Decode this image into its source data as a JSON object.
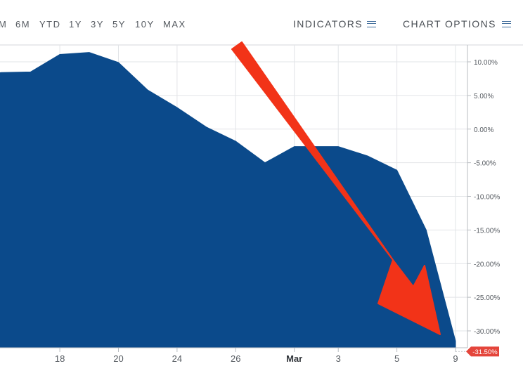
{
  "toolbar": {
    "ranges": [
      "M",
      "6M",
      "YTD",
      "1Y",
      "3Y",
      "5Y",
      "10Y",
      "MAX"
    ],
    "indicators_label": "INDICATORS",
    "chart_options_label": "CHART OPTIONS"
  },
  "colors": {
    "area_fill": "#0b4a8b",
    "arrow": "#f23318",
    "last_value_badge": "#e4453b",
    "grid": "#e2e4e7",
    "axis_text": "#555a60"
  },
  "chart_data": {
    "type": "area",
    "ylim": [
      -33.5,
      12.5
    ],
    "y_ticks": [
      {
        "value": 10,
        "label": "10.00%"
      },
      {
        "value": 5,
        "label": "5.00%"
      },
      {
        "value": 0,
        "label": "0.00%"
      },
      {
        "value": -5,
        "label": "-5.00%"
      },
      {
        "value": -10,
        "label": "-10.00%"
      },
      {
        "value": -15,
        "label": "-15.00%"
      },
      {
        "value": -20,
        "label": "-20.00%"
      },
      {
        "value": -25,
        "label": "-25.00%"
      },
      {
        "value": -30,
        "label": "-30.00%"
      }
    ],
    "x_range": [
      -1,
      15.5
    ],
    "x_ticks": [
      {
        "x": 2,
        "label": "18",
        "bold": false
      },
      {
        "x": 4,
        "label": "20",
        "bold": false
      },
      {
        "x": 6,
        "label": "24",
        "bold": false
      },
      {
        "x": 8,
        "label": "26",
        "bold": false
      },
      {
        "x": 10,
        "label": "Mar",
        "bold": true
      },
      {
        "x": 11.5,
        "label": "3",
        "bold": false
      },
      {
        "x": 13.5,
        "label": "5",
        "bold": false
      },
      {
        "x": 15.5,
        "label": "9",
        "bold": false
      }
    ],
    "series": [
      {
        "x": [
          -1,
          0,
          1,
          2,
          3,
          4,
          5,
          6,
          7,
          8,
          9,
          10,
          11,
          11.5,
          12.5,
          13.5,
          14.5,
          15.5
        ],
        "values": [
          8.0,
          8.4,
          8.5,
          11.1,
          11.4,
          9.9,
          5.8,
          3.2,
          0.3,
          -1.8,
          -5.0,
          -2.6,
          -2.6,
          -2.6,
          -4.0,
          -6.1,
          -15.0,
          -31.5
        ]
      }
    ],
    "last_value_label": "-31.50%",
    "annotations": [
      {
        "type": "arrow",
        "color": "#f23318",
        "pointing": "down-right toward last value"
      }
    ]
  }
}
